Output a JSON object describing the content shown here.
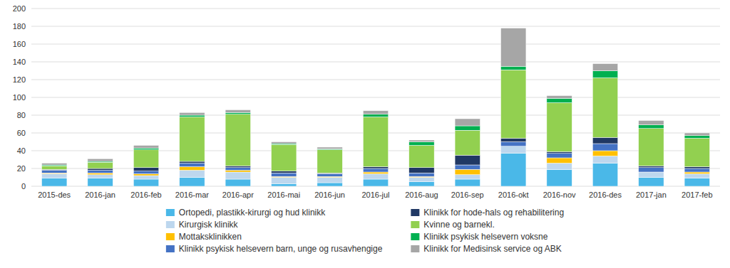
{
  "chart_data": {
    "type": "bar",
    "stacked": true,
    "grid": true,
    "legend": "bottom",
    "categories": [
      "2015-des",
      "2016-jan",
      "2016-feb",
      "2016-mar",
      "2016-apr",
      "2016-mai",
      "2016-jun",
      "2016-jul",
      "2016-aug",
      "2016-sep",
      "2016-okt",
      "2016-nov",
      "2016-des",
      "2017-jan",
      "2017-feb"
    ],
    "series": [
      {
        "name": "Ortopedi, plastikk-kirurgi og hud klinikk",
        "color": "#4ab8e8",
        "values": [
          9,
          9,
          8,
          10,
          8,
          3,
          4,
          8,
          5,
          8,
          37,
          19,
          26,
          10,
          9
        ]
      },
      {
        "name": "Kirurgisk klinikk",
        "color": "#bdd7ee",
        "values": [
          5,
          4,
          4,
          8,
          8,
          7,
          6,
          6,
          5,
          5,
          8,
          7,
          8,
          6,
          5
        ]
      },
      {
        "name": "Mottaksklinikken",
        "color": "#ffc000",
        "values": [
          1,
          2,
          2,
          4,
          2,
          1,
          1,
          2,
          1,
          6,
          0,
          6,
          6,
          0,
          2
        ]
      },
      {
        "name": "Klinikk psykisk helsevern barn, unge og rusavhengige",
        "color": "#4472c4",
        "values": [
          3,
          3,
          3,
          4,
          3,
          4,
          3,
          4,
          4,
          5,
          5,
          5,
          8,
          5,
          4
        ]
      },
      {
        "name": "Klinikk for hode-hals og rehabilitering",
        "color": "#203864",
        "values": [
          1,
          2,
          4,
          2,
          2,
          2,
          1,
          2,
          6,
          11,
          4,
          2,
          7,
          2,
          2
        ]
      },
      {
        "name": "Kvinne og barnekl.",
        "color": "#92d050",
        "values": [
          4,
          7,
          20,
          50,
          58,
          30,
          26,
          56,
          25,
          28,
          77,
          55,
          67,
          42,
          32
        ]
      },
      {
        "name": "Klinikk psykisk helsevern voksne",
        "color": "#00b050",
        "values": [
          1,
          1,
          2,
          2,
          2,
          1,
          1,
          3,
          4,
          5,
          4,
          5,
          8,
          4,
          3
        ]
      },
      {
        "name": "Klinikk for Medisinsk service og ABK",
        "color": "#a6a6a6",
        "values": [
          2,
          3,
          3,
          3,
          3,
          2,
          2,
          4,
          2,
          8,
          43,
          3,
          8,
          5,
          3
        ]
      }
    ],
    "ylim": [
      0,
      200
    ],
    "yticks": [
      0,
      20,
      40,
      60,
      80,
      100,
      120,
      140,
      160,
      180,
      200
    ]
  }
}
